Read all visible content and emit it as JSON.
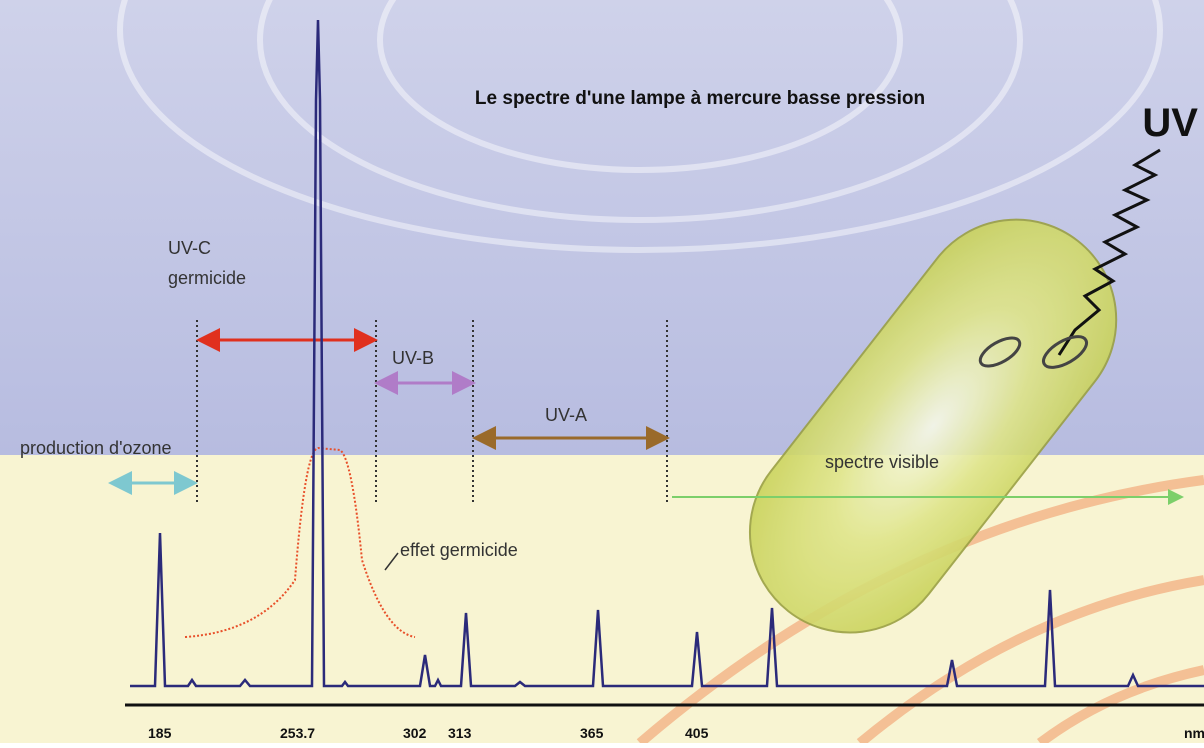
{
  "title": "Le spectre d'une lampe à mercure basse pression",
  "uv_label": "UV",
  "bands": {
    "uvc": [
      "UV-C",
      "germicide"
    ],
    "uvb": "UV-B",
    "uva": "UV-A",
    "ozone": "production d'ozone",
    "visible": "spectre visible",
    "germicidal_effect": "effet germicide"
  },
  "axis_labels": [
    "185",
    "253.7",
    "302",
    "313",
    "365",
    "405",
    "nm"
  ]
}
